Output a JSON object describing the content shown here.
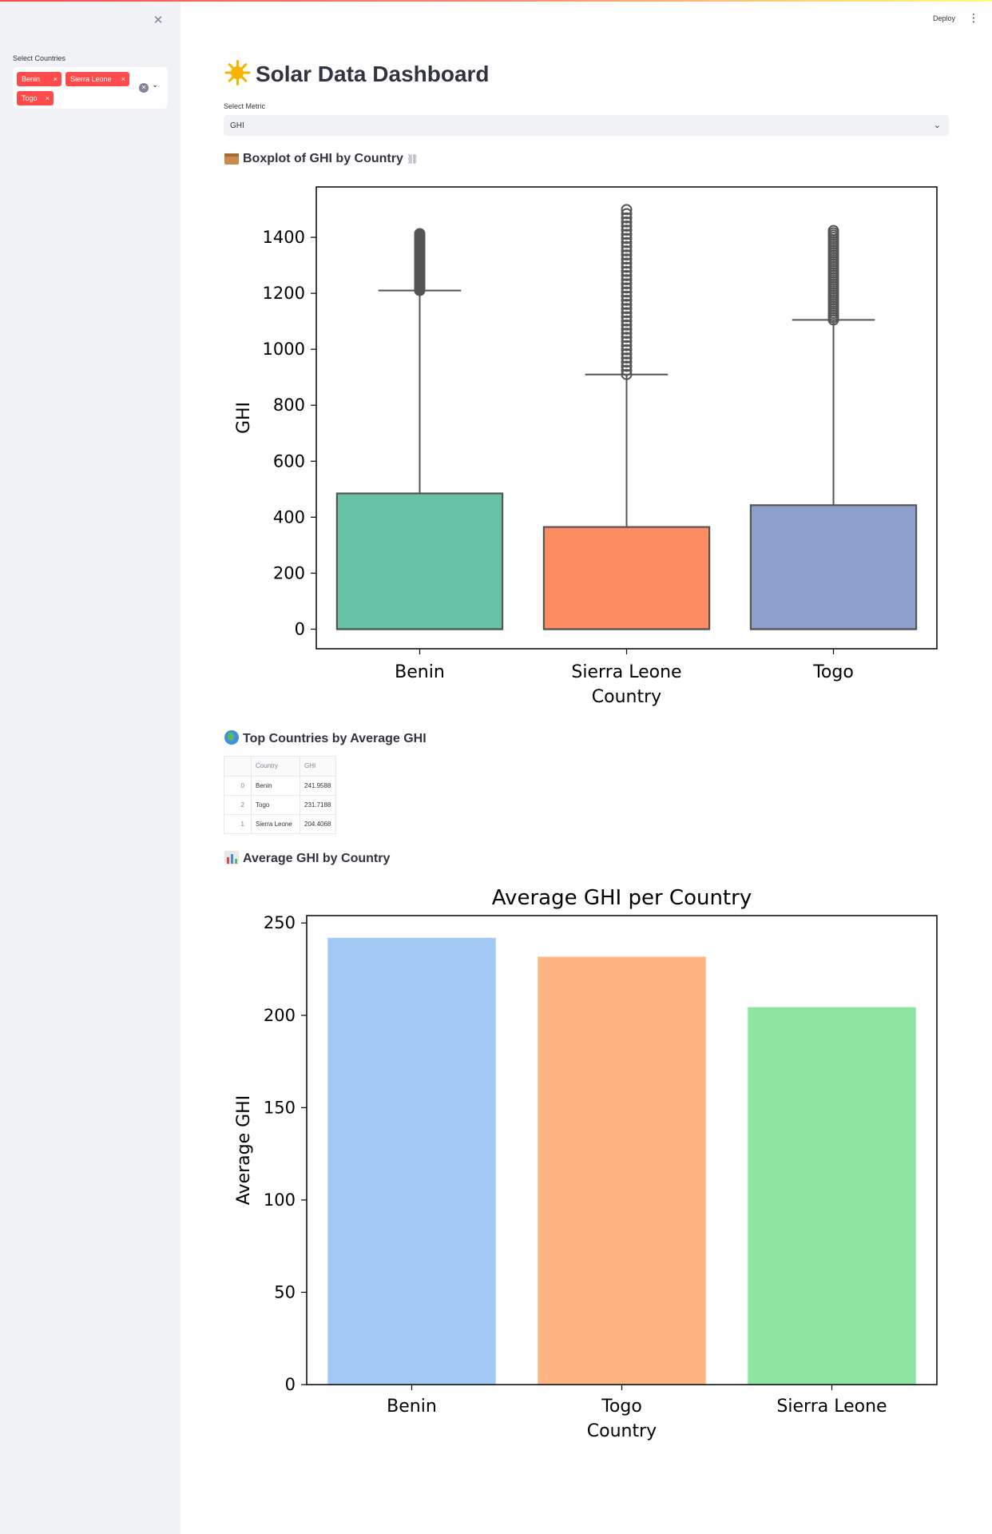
{
  "app": {
    "deploy_label": "Deploy",
    "title": "Solar Data Dashboard"
  },
  "sidebar": {
    "select_label": "Select Countries",
    "selected": [
      "Benin",
      "Sierra Leone",
      "Togo"
    ],
    "tag_remove": "×"
  },
  "metric": {
    "label": "Select Metric",
    "value": "GHI"
  },
  "sections": {
    "boxplot": "Boxplot of GHI by Country",
    "top": "Top Countries by Average GHI",
    "bar": "Average GHI by Country"
  },
  "table": {
    "headers": [
      "",
      "Country",
      "GHI"
    ],
    "rows": [
      {
        "index": "0",
        "country": "Benin",
        "ghi": "241.9588"
      },
      {
        "index": "2",
        "country": "Togo",
        "ghi": "231.7188"
      },
      {
        "index": "1",
        "country": "Sierra Leone",
        "ghi": "204.4068"
      }
    ]
  },
  "chart_data": [
    {
      "type": "box",
      "title": "",
      "xlabel": "Country",
      "ylabel": "GHI",
      "categories": [
        "Benin",
        "Sierra Leone",
        "Togo"
      ],
      "boxes": [
        {
          "name": "Benin",
          "q1": 0,
          "median": 0,
          "q3": 485,
          "whisker_low": 0,
          "whisker_high": 1210,
          "outlier_min": 1210,
          "outlier_max": 1413,
          "color": "#66c2a5"
        },
        {
          "name": "Sierra Leone",
          "q1": 0,
          "median": 0,
          "q3": 365,
          "whisker_low": 0,
          "whisker_high": 910,
          "outlier_min": 910,
          "outlier_max": 1499,
          "color": "#fc8d62"
        },
        {
          "name": "Togo",
          "q1": 0,
          "median": 0,
          "q3": 443,
          "whisker_low": 0,
          "whisker_high": 1105,
          "outlier_min": 1105,
          "outlier_max": 1424,
          "color": "#8da0cb"
        }
      ],
      "ylim": [
        -70,
        1580
      ],
      "yticks": [
        0,
        200,
        400,
        600,
        800,
        1000,
        1200,
        1400
      ]
    },
    {
      "type": "bar",
      "title": "Average GHI per Country",
      "xlabel": "Country",
      "ylabel": "Average GHI",
      "categories": [
        "Benin",
        "Togo",
        "Sierra Leone"
      ],
      "values": [
        241.9588,
        231.7188,
        204.4068
      ],
      "colors": [
        "#a1c9f4",
        "#ffb482",
        "#8de5a1"
      ],
      "ylim": [
        0,
        254
      ],
      "yticks": [
        0,
        50,
        100,
        150,
        200,
        250
      ]
    }
  ]
}
